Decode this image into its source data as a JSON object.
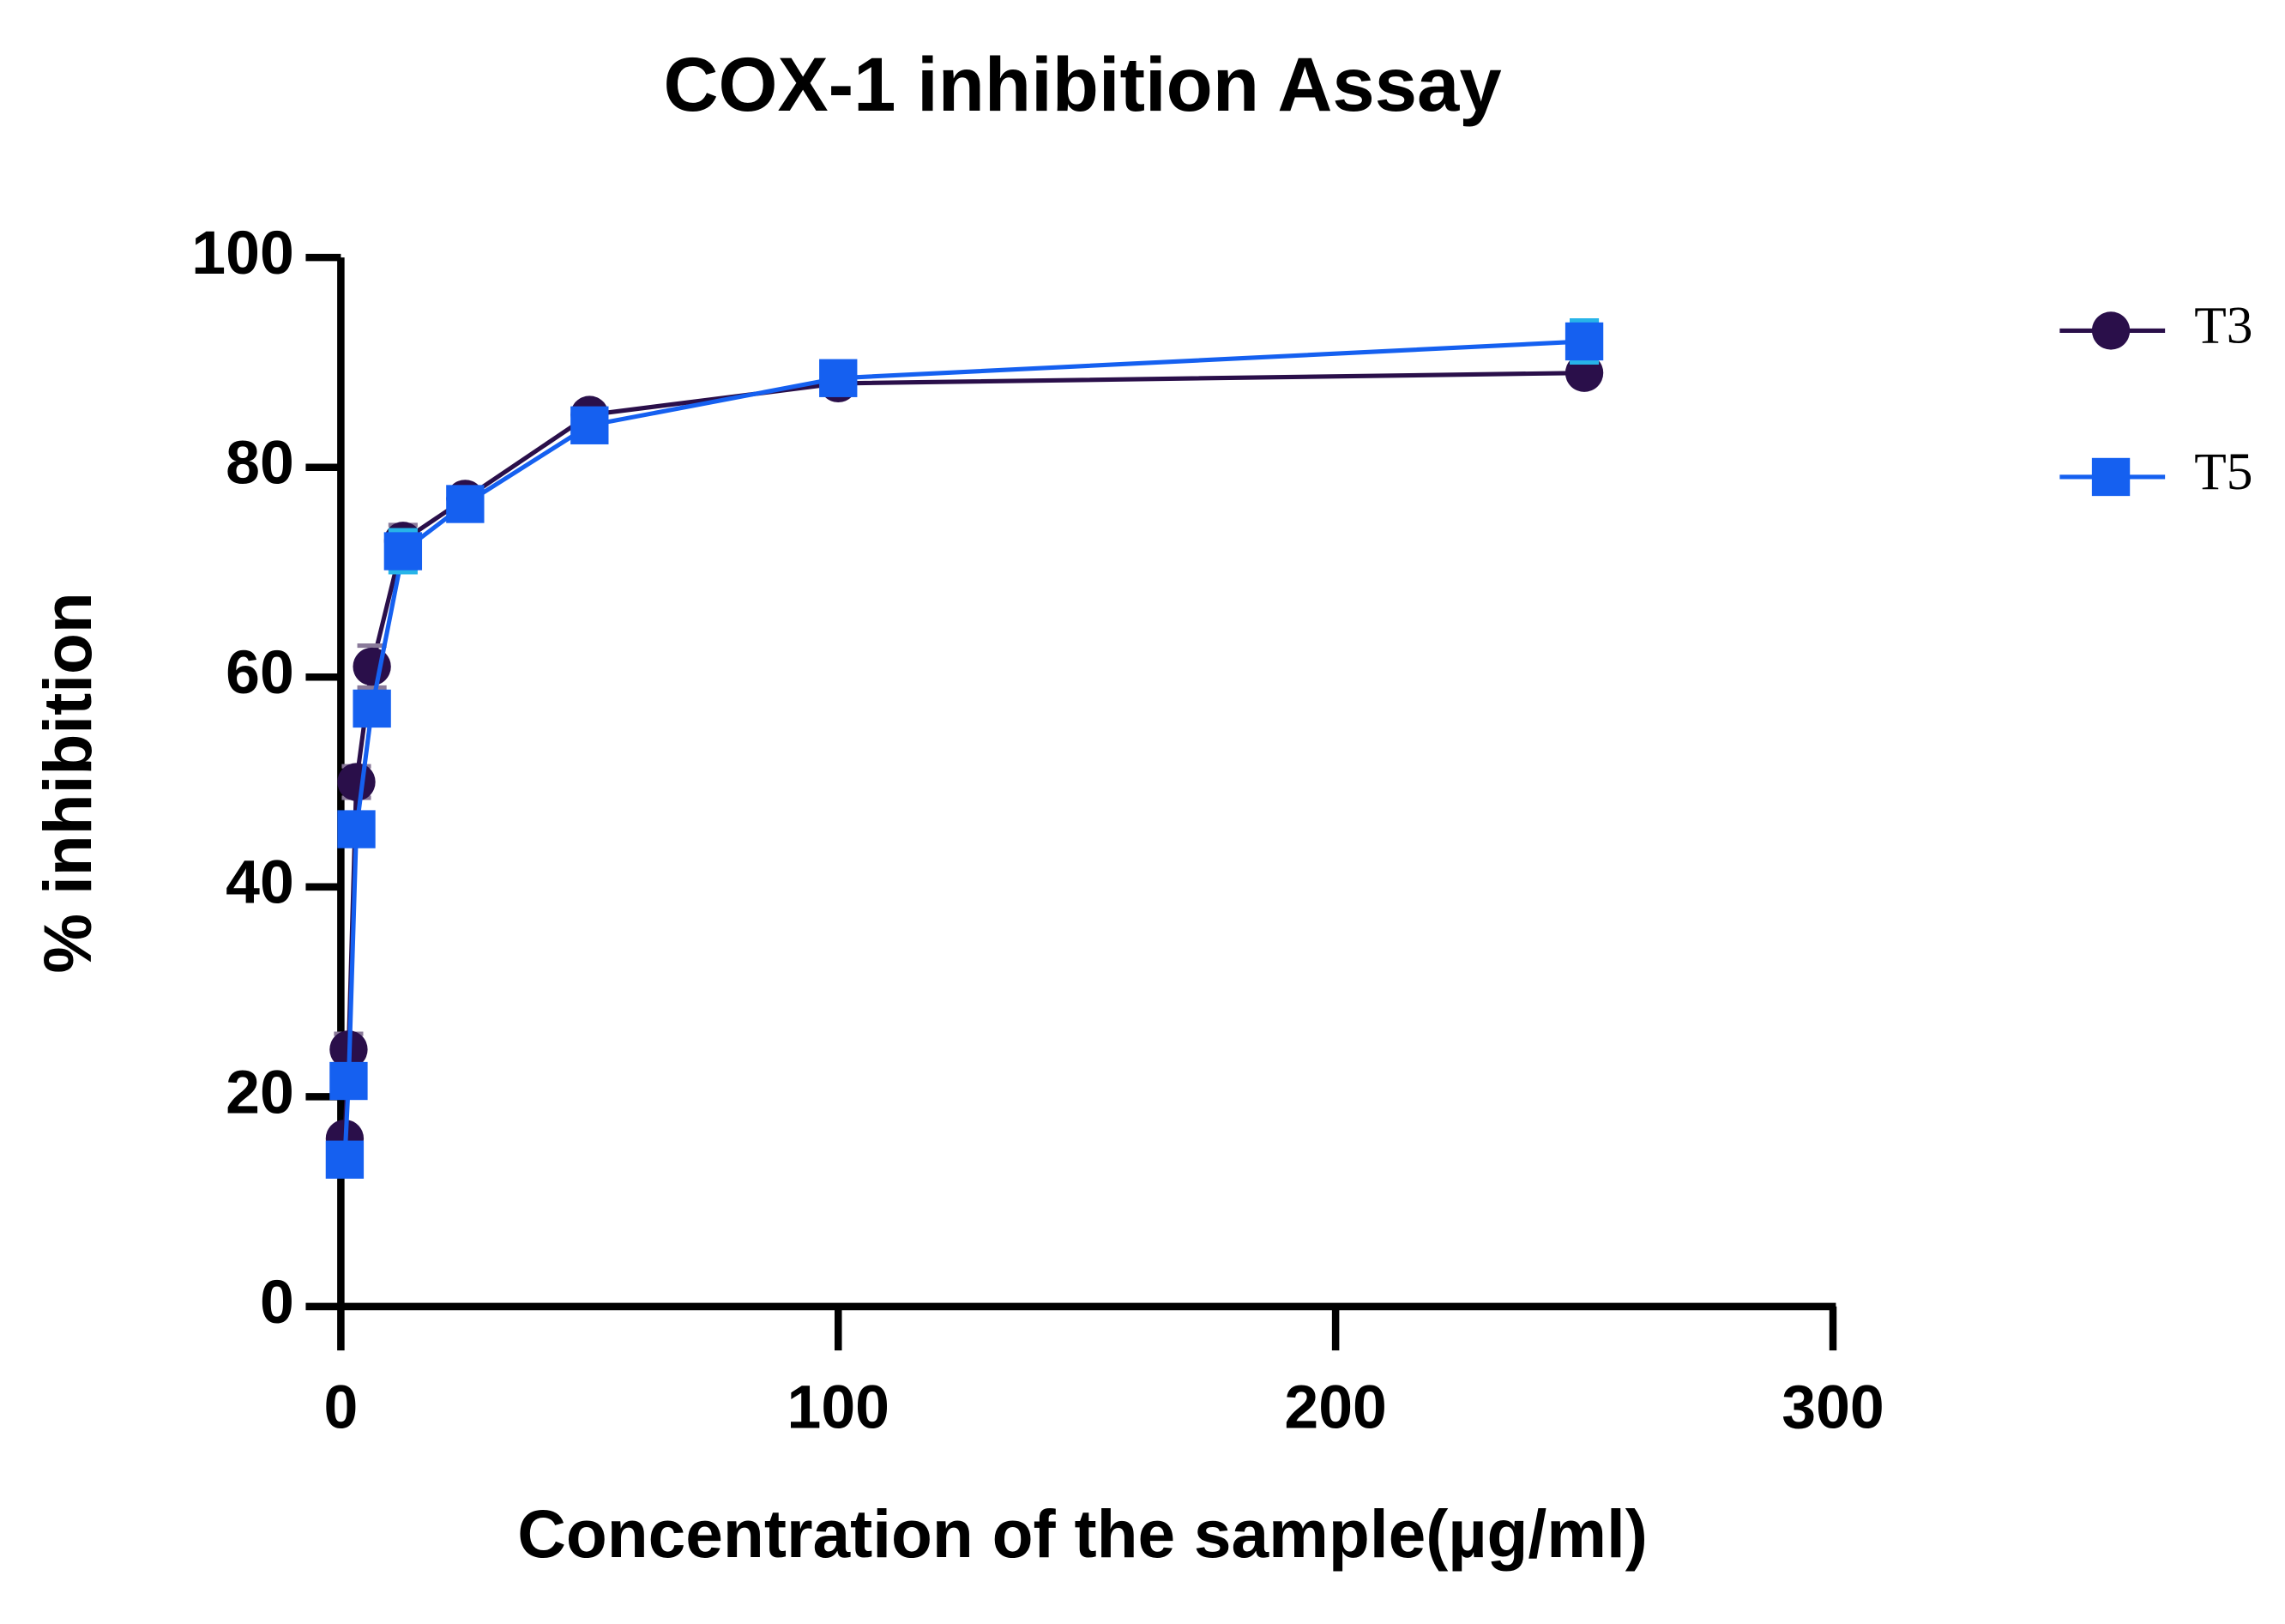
{
  "chart_data": {
    "type": "line",
    "title": "COX-1 inhibition Assay",
    "x_label": "Concentration of the sample(µg/ml)",
    "y_label": "% inhibition",
    "x": [
      0.78,
      1.56,
      3.125,
      6.25,
      12.5,
      25,
      50,
      100,
      250
    ],
    "series": [
      {
        "name": "T3",
        "color": "#2a0f4a",
        "marker": "circle",
        "values": [
          16,
          24.5,
          50,
          61,
          73,
          77,
          85,
          88,
          89
        ],
        "errors": [
          1,
          1.5,
          1.5,
          2,
          1.5,
          1,
          1,
          1,
          0.5
        ]
      },
      {
        "name": "T5",
        "color": "#1560f0",
        "marker": "square",
        "values": [
          14,
          21.5,
          45.5,
          57,
          72,
          76.5,
          84,
          88.5,
          92
        ],
        "errors": [
          1,
          1.5,
          1.5,
          1.5,
          2,
          1,
          1,
          1,
          2
        ]
      }
    ],
    "xlim": [
      0,
      300
    ],
    "xticks": [
      0,
      100,
      200,
      300
    ],
    "ylim": [
      0,
      100
    ],
    "yticks": [
      0,
      20,
      40,
      60,
      80,
      100
    ],
    "grid": false,
    "legend": "right"
  }
}
